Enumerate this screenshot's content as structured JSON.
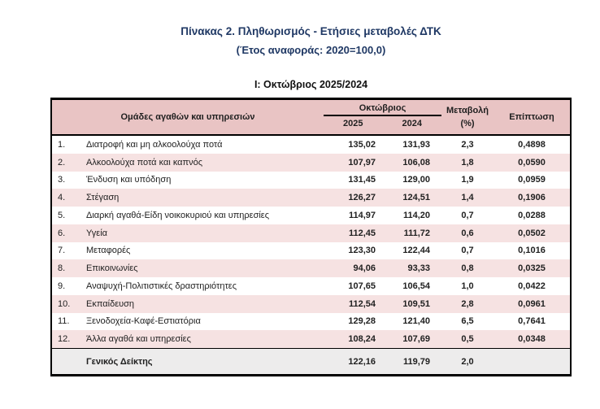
{
  "page": {
    "title_line1": "Πίνακας 2. Πληθωρισμός - Ετήσιες μεταβολές ΔΤΚ",
    "title_line2": "(Έτος αναφοράς: 2020=100,0)",
    "subtitle": "Ι: Οκτώβριος 2025/2024"
  },
  "table": {
    "header": {
      "groups_label": "Ομάδες αγαθών και υπηρεσιών",
      "month_label": "Οκτώβριος",
      "year_2025": "2025",
      "year_2024": "2024",
      "change_label": "Μεταβολή",
      "change_unit": "(%)",
      "impact_label": "Επίπτωση"
    },
    "rows": [
      {
        "num": "1.",
        "name": "Διατροφή και μη αλκοολούχα ποτά",
        "v2025": "135,02",
        "v2024": "131,93",
        "change": "2,3",
        "impact": "0,4898"
      },
      {
        "num": "2.",
        "name": "Αλκοολούχα ποτά και καπνός",
        "v2025": "107,97",
        "v2024": "106,08",
        "change": "1,8",
        "impact": "0,0590"
      },
      {
        "num": "3.",
        "name": "Ένδυση και υπόδηση",
        "v2025": "131,45",
        "v2024": "129,00",
        "change": "1,9",
        "impact": "0,0959"
      },
      {
        "num": "4.",
        "name": "Στέγαση",
        "v2025": "126,27",
        "v2024": "124,51",
        "change": "1,4",
        "impact": "0,1906"
      },
      {
        "num": "5.",
        "name": "Διαρκή αγαθά-Είδη νοικοκυριού και υπηρεσίες",
        "v2025": "114,97",
        "v2024": "114,20",
        "change": "0,7",
        "impact": "0,0288"
      },
      {
        "num": "6.",
        "name": "Υγεία",
        "v2025": "112,45",
        "v2024": "111,72",
        "change": "0,6",
        "impact": "0,0502"
      },
      {
        "num": "7.",
        "name": "Μεταφορές",
        "v2025": "123,30",
        "v2024": "122,44",
        "change": "0,7",
        "impact": "0,1016"
      },
      {
        "num": "8.",
        "name": "Επικοινωνίες",
        "v2025": "94,06",
        "v2024": "93,33",
        "change": "0,8",
        "impact": "0,0325"
      },
      {
        "num": "9.",
        "name": "Αναψυχή-Πολιτιστικές δραστηριότητες",
        "v2025": "107,65",
        "v2024": "106,54",
        "change": "1,0",
        "impact": "0,0422"
      },
      {
        "num": "10.",
        "name": "Εκπαίδευση",
        "v2025": "112,54",
        "v2024": "109,51",
        "change": "2,8",
        "impact": "0,0961"
      },
      {
        "num": "11.",
        "name": "Ξενοδοχεία-Καφέ-Εστιατόρια",
        "v2025": "129,28",
        "v2024": "121,40",
        "change": "6,5",
        "impact": "0,7641"
      },
      {
        "num": "12.",
        "name": "Άλλα αγαθά και υπηρεσίες",
        "v2025": "108,24",
        "v2024": "107,69",
        "change": "0,5",
        "impact": "0,0348"
      }
    ],
    "total": {
      "name": "Γενικός Δείκτης",
      "v2025": "122,16",
      "v2024": "119,79",
      "change": "2,0",
      "impact": ""
    }
  },
  "colors": {
    "header_bg": "#e9c4c4",
    "alt_row_bg": "#f6e2e2",
    "total_row_bg": "#edecec",
    "title_color": "#1f3864",
    "border_color": "#000000"
  }
}
